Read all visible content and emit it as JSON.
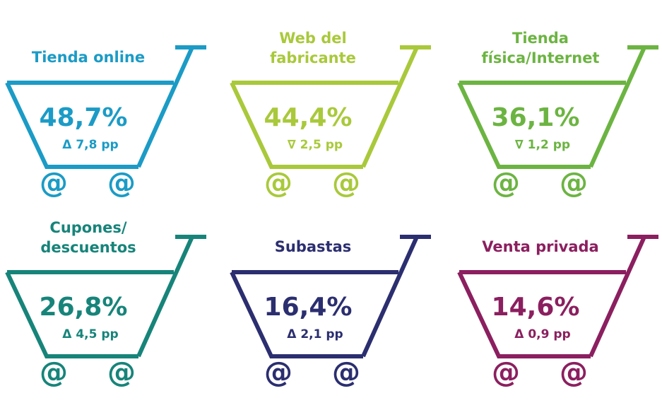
{
  "wheel_symbol": "@",
  "items": [
    {
      "label": [
        "Tienda online"
      ],
      "value": "48,7%",
      "change": "Δ 7,8 pp",
      "color": "#1b9bc6"
    },
    {
      "label": [
        "Web del",
        "fabricante"
      ],
      "value": "44,4%",
      "change": "∇ 2,5 pp",
      "color": "#a9c93b"
    },
    {
      "label": [
        "Tienda",
        "física/Internet"
      ],
      "value": "36,1%",
      "change": "∇ 1,2 pp",
      "color": "#6cb442"
    },
    {
      "label": [
        "Cupones/",
        "descuentos"
      ],
      "value": "26,8%",
      "change": "Δ 4,5 pp",
      "color": "#17847a"
    },
    {
      "label": [
        "Subastas"
      ],
      "value": "16,4%",
      "change": "Δ 2,1 pp",
      "color": "#2b2e6f"
    },
    {
      "label": [
        "Venta privada"
      ],
      "value": "14,6%",
      "change": "Δ 0,9 pp",
      "color": "#8b1f5f"
    }
  ]
}
